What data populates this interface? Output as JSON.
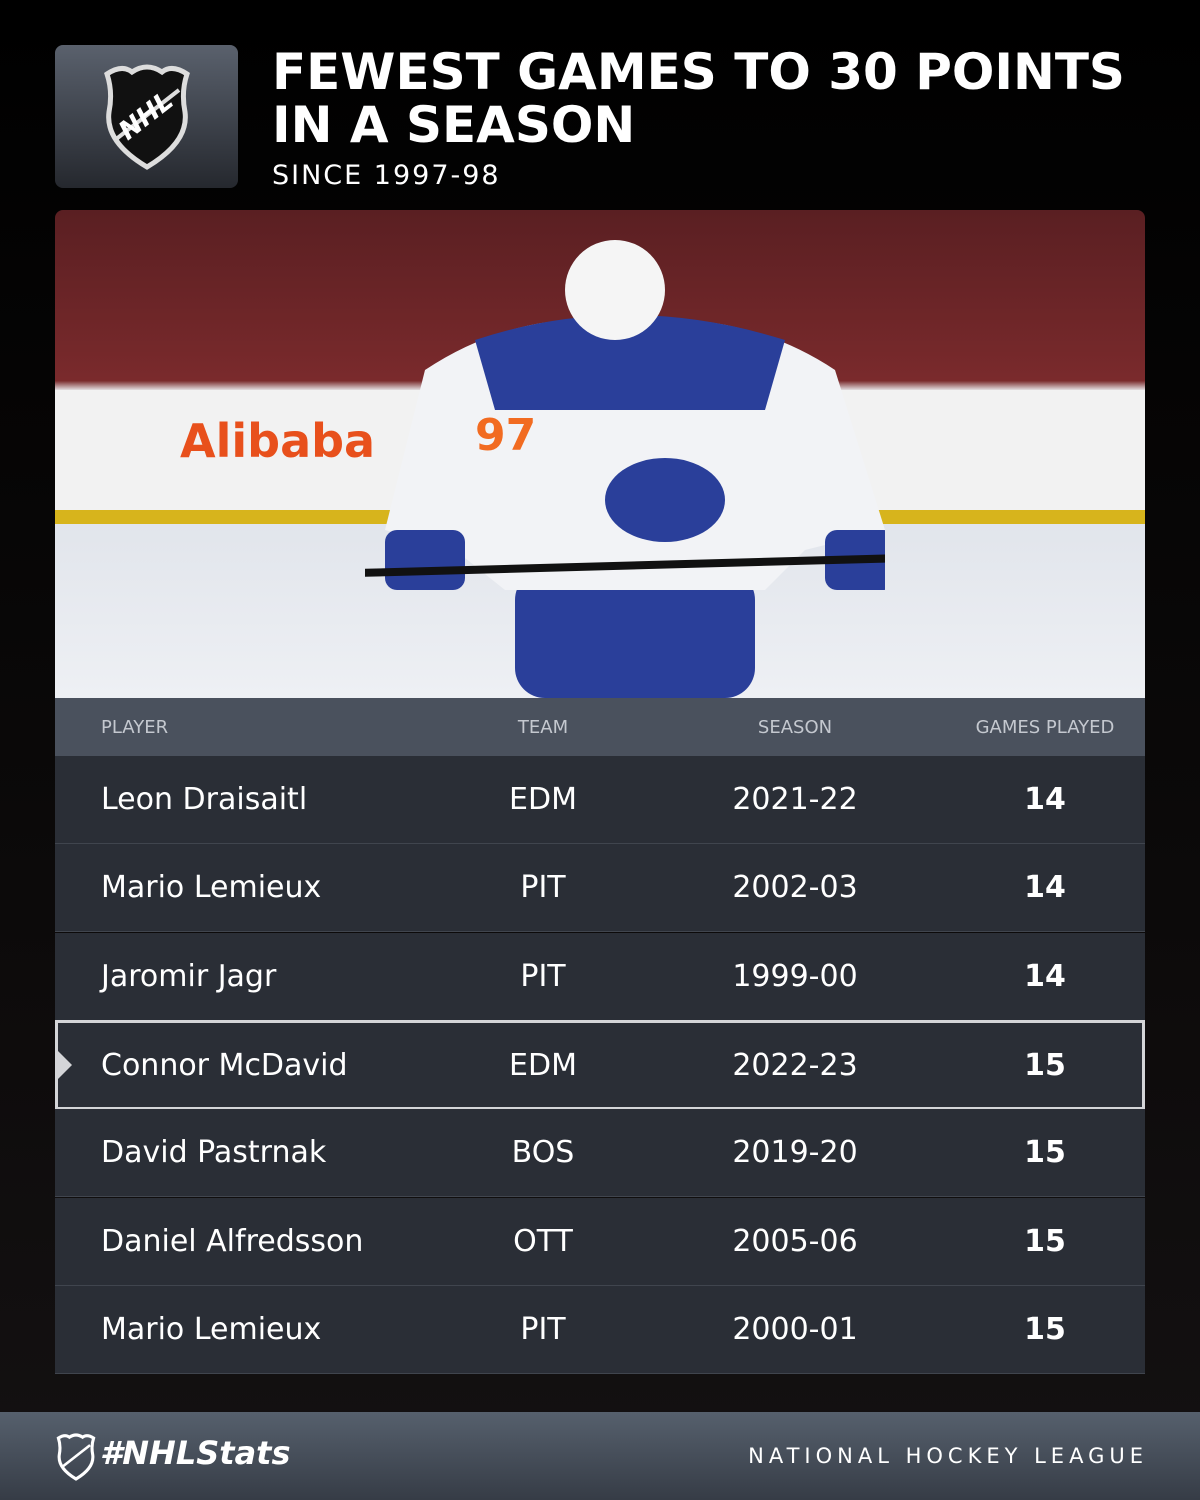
{
  "header": {
    "logo_text": "NHL",
    "title_line1": "FEWEST GAMES TO 30 POINTS",
    "title_line2": "IN A SEASON",
    "subtitle": "SINCE 1997-98"
  },
  "photo": {
    "jersey_number": "97",
    "board_text": "Alibaba"
  },
  "table": {
    "columns": [
      "PLAYER",
      "TEAM",
      "SEASON",
      "GAMES PLAYED"
    ],
    "rows": [
      {
        "player": "Leon Draisaitl",
        "team": "EDM",
        "season": "2021-22",
        "games": "14"
      },
      {
        "player": "Mario Lemieux",
        "team": "PIT",
        "season": "2002-03",
        "games": "14"
      },
      {
        "player": "Jaromir Jagr",
        "team": "PIT",
        "season": "1999-00",
        "games": "14"
      },
      {
        "player": "Connor McDavid",
        "team": "EDM",
        "season": "2022-23",
        "games": "15",
        "highlighted": true
      },
      {
        "player": "David Pastrnak",
        "team": "BOS",
        "season": "2019-20",
        "games": "15"
      },
      {
        "player": "Daniel Alfredsson",
        "team": "OTT",
        "season": "2005-06",
        "games": "15"
      },
      {
        "player": "Mario Lemieux",
        "team": "PIT",
        "season": "2000-01",
        "games": "15"
      }
    ]
  },
  "footer": {
    "hashtag": "#NHLStats",
    "league": "NATIONAL HOCKEY LEAGUE"
  },
  "colors": {
    "row_bg": "#2a2e36",
    "header_bg": "#4a515d",
    "highlight_border": "#d4d5d8",
    "oilers_orange": "#f26b21",
    "oilers_blue": "#2a3f9a"
  }
}
